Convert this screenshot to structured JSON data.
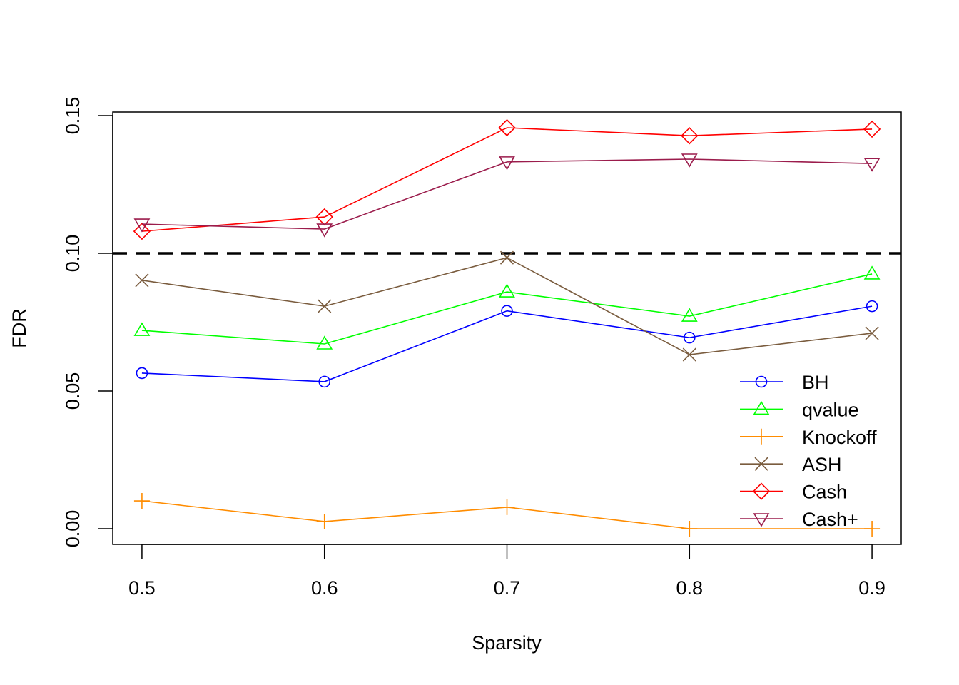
{
  "chart_data": {
    "type": "line",
    "title": "",
    "xlabel": "Sparsity",
    "ylabel": "FDR",
    "x": [
      0.5,
      0.6,
      0.7,
      0.8,
      0.9
    ],
    "xlim": [
      0.484,
      0.916
    ],
    "ylim": [
      -0.0057,
      0.1513
    ],
    "x_ticks": [
      "0.5",
      "0.6",
      "0.7",
      "0.8",
      "0.9"
    ],
    "x_tick_values": [
      0.5,
      0.6,
      0.7,
      0.8,
      0.9
    ],
    "y_ticks": [
      "0.00",
      "0.05",
      "0.10",
      "0.15"
    ],
    "y_tick_values": [
      0.0,
      0.05,
      0.1,
      0.15
    ],
    "reference_line": {
      "y": 0.1,
      "style": "dashed",
      "color": "#000000"
    },
    "legend_position": "bottom-right",
    "series": [
      {
        "name": "BH",
        "color": "#0000ff",
        "marker": "circle",
        "values": [
          0.0565,
          0.0534,
          0.0791,
          0.0694,
          0.0808
        ]
      },
      {
        "name": "qvalue",
        "color": "#00ff00",
        "marker": "triangle-up",
        "values": [
          0.072,
          0.0671,
          0.086,
          0.0772,
          0.0925
        ]
      },
      {
        "name": "Knockoff",
        "color": "#ff8c00",
        "marker": "plus",
        "values": [
          0.0101,
          0.0026,
          0.0078,
          0.0,
          0.0
        ]
      },
      {
        "name": "ASH",
        "color": "#7a5c3e",
        "marker": "cross",
        "values": [
          0.0902,
          0.0808,
          0.0984,
          0.0632,
          0.071
        ]
      },
      {
        "name": "Cash",
        "color": "#ff0000",
        "marker": "diamond",
        "values": [
          0.108,
          0.1132,
          0.1456,
          0.1427,
          0.1451
        ]
      },
      {
        "name": "Cash+",
        "color": "#9b1c4c",
        "marker": "triangle-down",
        "values": [
          0.1106,
          0.1088,
          0.1332,
          0.1342,
          0.1326
        ]
      }
    ]
  }
}
